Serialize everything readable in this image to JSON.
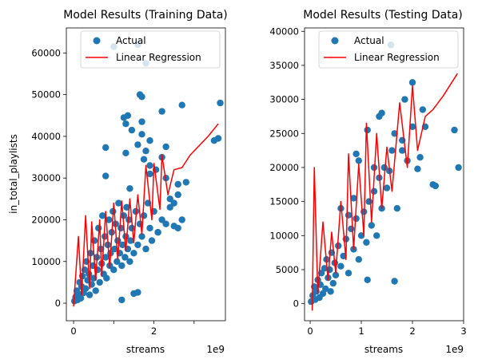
{
  "chart_data": [
    {
      "type": "scatter",
      "title": "Model Results (Training Data)",
      "xlabel": "streams",
      "ylabel": "in_total_playlists",
      "x_scale_label": "1e9",
      "xlim": [
        -0.18,
        3.78
      ],
      "ylim": [
        -4200,
        66000
      ],
      "xticks": [
        0,
        1,
        2,
        3
      ],
      "xtick_labels": [
        "0",
        "",
        "2",
        ""
      ],
      "yticks": [
        0,
        10000,
        20000,
        30000,
        40000,
        50000,
        60000
      ],
      "ytick_labels": [
        "0",
        "10000",
        "20000",
        "30000",
        "40000",
        "50000",
        "60000"
      ],
      "legend": {
        "placement": "top-center",
        "entries": [
          "Actual",
          "Linear Regression"
        ]
      },
      "colors": {
        "actual": "#1f77b4",
        "regression": "#ff0000"
      },
      "series": [
        {
          "name": "Actual",
          "kind": "points",
          "points": [
            [
              0.02,
              500
            ],
            [
              0.05,
              1500
            ],
            [
              0.08,
              3000
            ],
            [
              0.1,
              800
            ],
            [
              0.12,
              2200
            ],
            [
              0.15,
              5000
            ],
            [
              0.18,
              1200
            ],
            [
              0.2,
              4000
            ],
            [
              0.22,
              6500
            ],
            [
              0.25,
              2500
            ],
            [
              0.28,
              8000
            ],
            [
              0.3,
              3500
            ],
            [
              0.32,
              10000
            ],
            [
              0.35,
              5500
            ],
            [
              0.38,
              7000
            ],
            [
              0.4,
              2000
            ],
            [
              0.42,
              12000
            ],
            [
              0.45,
              4500
            ],
            [
              0.48,
              9000
            ],
            [
              0.5,
              6000
            ],
            [
              0.52,
              15000
            ],
            [
              0.55,
              3000
            ],
            [
              0.58,
              11000
            ],
            [
              0.6,
              8000
            ],
            [
              0.62,
              18000
            ],
            [
              0.65,
              5000
            ],
            [
              0.68,
              13000
            ],
            [
              0.7,
              9500
            ],
            [
              0.72,
              21000
            ],
            [
              0.75,
              7000
            ],
            [
              0.78,
              16000
            ],
            [
              0.8,
              11000
            ],
            [
              0.82,
              6000
            ],
            [
              0.85,
              14000
            ],
            [
              0.88,
              20000
            ],
            [
              0.9,
              9000
            ],
            [
              0.92,
              12000
            ],
            [
              0.95,
              17000
            ],
            [
              0.98,
              22000
            ],
            [
              1.0,
              8000
            ],
            [
              1.02,
              13000
            ],
            [
              1.05,
              19000
            ],
            [
              1.08,
              10000
            ],
            [
              1.1,
              15000
            ],
            [
              1.12,
              24000
            ],
            [
              1.15,
              12000
            ],
            [
              1.18,
              18000
            ],
            [
              1.2,
              9000
            ],
            [
              1.22,
              14000
            ],
            [
              1.25,
              21000
            ],
            [
              1.28,
              11000
            ],
            [
              1.3,
              16000
            ],
            [
              1.32,
              23000
            ],
            [
              1.35,
              13000
            ],
            [
              1.38,
              20000
            ],
            [
              1.4,
              10000
            ],
            [
              1.42,
              15000
            ],
            [
              1.45,
              18000
            ],
            [
              1.5,
              12000
            ],
            [
              1.55,
              22000
            ],
            [
              1.6,
              14000
            ],
            [
              1.65,
              19000
            ],
            [
              1.7,
              16000
            ],
            [
              1.75,
              21000
            ],
            [
              1.8,
              13000
            ],
            [
              1.85,
              24000
            ],
            [
              1.9,
              18000
            ],
            [
              1.95,
              15000
            ],
            [
              2.0,
              22000
            ],
            [
              2.1,
              17000
            ],
            [
              2.2,
              20000
            ],
            [
              2.3,
              19000
            ],
            [
              2.4,
              23000
            ],
            [
              2.5,
              18500
            ],
            [
              2.6,
              26000
            ],
            [
              1.0,
              61500
            ],
            [
              1.6,
              62000
            ],
            [
              1.8,
              57500
            ],
            [
              1.65,
              50000
            ],
            [
              1.7,
              49500
            ],
            [
              1.35,
              45000
            ],
            [
              2.2,
              46000
            ],
            [
              2.7,
              47500
            ],
            [
              3.65,
              48000
            ],
            [
              1.25,
              44500
            ],
            [
              1.3,
              43000
            ],
            [
              1.7,
              43500
            ],
            [
              1.45,
              41500
            ],
            [
              1.7,
              40500
            ],
            [
              1.9,
              39000
            ],
            [
              1.6,
              38000
            ],
            [
              0.8,
              37300
            ],
            [
              1.8,
              36500
            ],
            [
              2.3,
              37500
            ],
            [
              1.3,
              36000
            ],
            [
              2.2,
              35000
            ],
            [
              1.75,
              34500
            ],
            [
              1.9,
              33000
            ],
            [
              2.05,
              32000
            ],
            [
              1.9,
              31000
            ],
            [
              0.8,
              30500
            ],
            [
              2.3,
              30000
            ],
            [
              2.8,
              29000
            ],
            [
              2.6,
              28500
            ],
            [
              1.4,
              27500
            ],
            [
              3.5,
              39000
            ],
            [
              3.6,
              39500
            ],
            [
              2.4,
              25000
            ],
            [
              2.5,
              24000
            ],
            [
              2.7,
              20000
            ],
            [
              2.6,
              18000
            ],
            [
              2.1,
              17000
            ],
            [
              1.2,
              800
            ],
            [
              1.5,
              2300
            ],
            [
              1.6,
              2600
            ]
          ]
        },
        {
          "name": "Linear Regression",
          "kind": "path",
          "points": [
            [
              0.0,
              -800
            ],
            [
              0.12,
              16000
            ],
            [
              0.2,
              2000
            ],
            [
              0.3,
              21000
            ],
            [
              0.4,
              3500
            ],
            [
              0.45,
              19500
            ],
            [
              0.55,
              5500
            ],
            [
              0.65,
              20000
            ],
            [
              0.7,
              6500
            ],
            [
              0.8,
              22000
            ],
            [
              0.9,
              8500
            ],
            [
              1.0,
              24000
            ],
            [
              1.1,
              10500
            ],
            [
              1.2,
              24500
            ],
            [
              1.3,
              12500
            ],
            [
              1.4,
              25000
            ],
            [
              1.5,
              14500
            ],
            [
              1.6,
              26000
            ],
            [
              1.7,
              16500
            ],
            [
              1.8,
              33000
            ],
            [
              1.95,
              20000
            ],
            [
              2.0,
              33500
            ],
            [
              2.15,
              22500
            ],
            [
              2.2,
              35500
            ],
            [
              2.35,
              26000
            ],
            [
              2.5,
              32000
            ],
            [
              2.7,
              32500
            ],
            [
              2.9,
              35500
            ],
            [
              3.1,
              37500
            ],
            [
              3.35,
              40000
            ],
            [
              3.6,
              43000
            ]
          ]
        }
      ]
    },
    {
      "type": "scatter",
      "title": "Model Results (Testing Data)",
      "xlabel": "streams",
      "ylabel": "",
      "x_scale_label": "1e9",
      "xlim": [
        -0.11,
        3.0
      ],
      "ylim": [
        -2500,
        40500
      ],
      "xticks": [
        0,
        1,
        2,
        3
      ],
      "xtick_labels": [
        "0",
        "1",
        "2",
        "3"
      ],
      "yticks": [
        0,
        5000,
        10000,
        15000,
        20000,
        25000,
        30000,
        35000,
        40000
      ],
      "ytick_labels": [
        "0",
        "5000",
        "10000",
        "15000",
        "20000",
        "25000",
        "30000",
        "35000",
        "40000"
      ],
      "legend": {
        "placement": "top-center",
        "entries": [
          "Actual",
          "Linear Regression"
        ]
      },
      "colors": {
        "actual": "#1f77b4",
        "regression": "#ff0000"
      },
      "series": [
        {
          "name": "Actual",
          "kind": "points",
          "points": [
            [
              0.02,
              300
            ],
            [
              0.05,
              1200
            ],
            [
              0.08,
              2500
            ],
            [
              0.1,
              600
            ],
            [
              0.12,
              1800
            ],
            [
              0.15,
              3500
            ],
            [
              0.18,
              900
            ],
            [
              0.2,
              2800
            ],
            [
              0.22,
              4500
            ],
            [
              0.25,
              1500
            ],
            [
              0.28,
              5200
            ],
            [
              0.3,
              2200
            ],
            [
              0.32,
              6500
            ],
            [
              0.35,
              3800
            ],
            [
              0.38,
              5000
            ],
            [
              0.4,
              1800
            ],
            [
              0.42,
              7500
            ],
            [
              0.45,
              3000
            ],
            [
              0.48,
              6000
            ],
            [
              0.5,
              4200
            ],
            [
              0.55,
              8500
            ],
            [
              0.6,
              5500
            ],
            [
              0.65,
              7000
            ],
            [
              0.7,
              9500
            ],
            [
              0.75,
              4500
            ],
            [
              0.8,
              11000
            ],
            [
              0.85,
              8000
            ],
            [
              0.9,
              12500
            ],
            [
              0.95,
              6500
            ],
            [
              1.0,
              10000
            ],
            [
              1.05,
              13500
            ],
            [
              1.1,
              9000
            ],
            [
              1.15,
              15000
            ],
            [
              1.2,
              11500
            ],
            [
              1.25,
              16500
            ],
            [
              1.3,
              10000
            ],
            [
              1.35,
              18500
            ],
            [
              1.4,
              14000
            ],
            [
              1.45,
              20000
            ],
            [
              1.5,
              17000
            ],
            [
              1.55,
              19500
            ],
            [
              1.6,
              22500
            ],
            [
              1.7,
              14000
            ],
            [
              1.8,
              24000
            ],
            [
              1.9,
              21000
            ],
            [
              2.0,
              26000
            ],
            [
              1.58,
              38000
            ],
            [
              1.85,
              30000
            ],
            [
              2.0,
              32500
            ],
            [
              2.25,
              26000
            ],
            [
              2.2,
              28500
            ],
            [
              1.4,
              28000
            ],
            [
              1.35,
              27500
            ],
            [
              1.65,
              25000
            ],
            [
              1.12,
              25500
            ],
            [
              0.9,
              22000
            ],
            [
              2.15,
              21500
            ],
            [
              2.1,
              19800
            ],
            [
              2.4,
              17500
            ],
            [
              2.45,
              17300
            ],
            [
              2.9,
              20000
            ],
            [
              2.82,
              25500
            ],
            [
              1.65,
              3300
            ],
            [
              1.12,
              3500
            ],
            [
              0.85,
              15500
            ],
            [
              0.95,
              21000
            ],
            [
              1.25,
              20000
            ],
            [
              1.8,
              22500
            ],
            [
              0.6,
              14000
            ],
            [
              0.75,
              13000
            ]
          ]
        },
        {
          "name": "Linear Regression",
          "kind": "path",
          "points": [
            [
              0.04,
              -1000
            ],
            [
              0.08,
              20000
            ],
            [
              0.15,
              1500
            ],
            [
              0.25,
              12000
            ],
            [
              0.35,
              3500
            ],
            [
              0.42,
              10500
            ],
            [
              0.5,
              4500
            ],
            [
              0.6,
              15000
            ],
            [
              0.7,
              6500
            ],
            [
              0.75,
              22000
            ],
            [
              0.85,
              8000
            ],
            [
              0.95,
              20500
            ],
            [
              1.05,
              10000
            ],
            [
              1.1,
              26500
            ],
            [
              1.2,
              12000
            ],
            [
              1.3,
              25000
            ],
            [
              1.4,
              14000
            ],
            [
              1.5,
              23000
            ],
            [
              1.6,
              16500
            ],
            [
              1.75,
              29500
            ],
            [
              1.9,
              20000
            ],
            [
              2.0,
              32000
            ],
            [
              2.1,
              22500
            ],
            [
              2.25,
              27500
            ],
            [
              2.4,
              28500
            ],
            [
              2.6,
              30500
            ],
            [
              2.88,
              33800
            ]
          ]
        }
      ]
    }
  ]
}
